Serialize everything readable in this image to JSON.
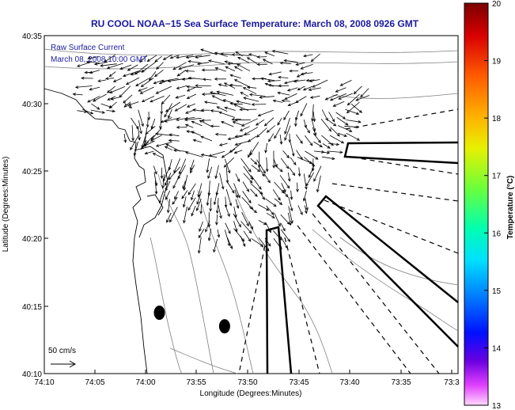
{
  "chart_data": {
    "type": "quiver",
    "title": "RU COOL  NOAA−15  Sea Surface Temperature:  March 08, 2008 0926 GMT",
    "annotations": [
      "Raw Surface Current",
      "March 08, 2008 10:00 GMT"
    ],
    "xlabel": "Longitude (Degrees:Minutes)",
    "ylabel": "Latitude (Degrees:Minutes)",
    "x_ticks": [
      "74:10",
      "74:05",
      "74:00",
      "73:55",
      "73:50",
      "73:45",
      "73:40",
      "73:35",
      "73:3"
    ],
    "y_ticks": [
      "40:10",
      "40:15",
      "40:20",
      "40:25",
      "40:30",
      "40:35"
    ],
    "xlim_minutes_west": [
      10,
      -30
    ],
    "ylim_minutes_north": [
      10,
      35
    ],
    "scale_label": "50 cm/s",
    "colorbar": {
      "label": "Temperature (°C)",
      "range": [
        13,
        20
      ],
      "ticks": [
        "20",
        "19",
        "18",
        "17",
        "16",
        "15",
        "14",
        "13"
      ]
    },
    "markers": [
      {
        "lon_min": 58.7,
        "lat_min": 14.5
      },
      {
        "lon_min": 52.3,
        "lat_min": 13.5
      }
    ]
  },
  "colors": {
    "title": "#1a1aa0",
    "annotation": "#1a1aa0",
    "arrows": "#000000",
    "contour": "#808080"
  }
}
